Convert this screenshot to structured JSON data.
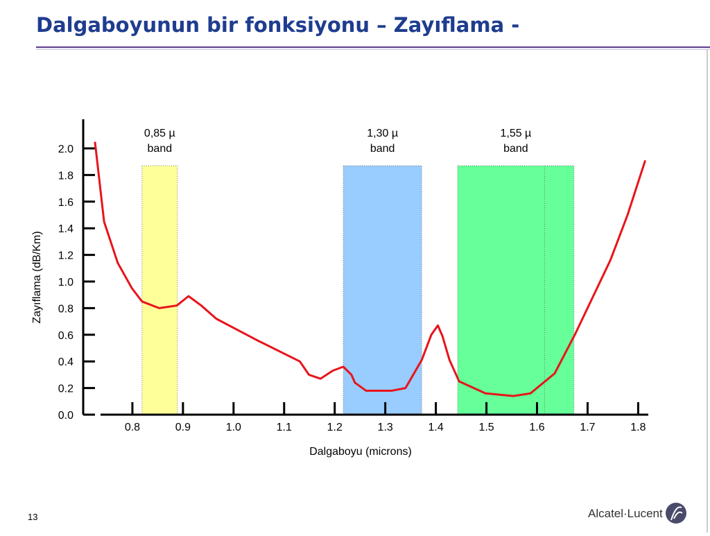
{
  "slide": {
    "title": "Dalgaboyunun bir fonksiyonu – Zayıflama -",
    "page_number": "13",
    "logo": "Alcatel·Lucent"
  },
  "chart_data": {
    "type": "line",
    "x_label": "Dalgaboyu (microns)",
    "y_label": "Zayıflama (dB/Km)",
    "xlim": [
      0.7,
      1.82
    ],
    "ylim": [
      0,
      2.2
    ],
    "xticks": [
      0.8,
      0.9,
      {
        "value": 1,
        "label": "1.0"
      },
      1.1,
      1.2,
      1.3,
      1.4,
      1.5,
      1.6,
      1.7,
      1.8
    ],
    "yticks": [
      {
        "value": 0,
        "label": "0.0"
      },
      0.2,
      0.4,
      0.6,
      0.8,
      {
        "value": 1,
        "label": "1.0"
      },
      1.2,
      1.4,
      1.6,
      1.8,
      {
        "value": 2,
        "label": "2.0"
      }
    ],
    "bands": [
      {
        "label": [
          "0,85 µ",
          "band"
        ],
        "xlim": [
          0.819,
          0.889
        ],
        "top": 1.87,
        "color": "#ffff99"
      },
      {
        "label": [
          "1,30 µ",
          "band"
        ],
        "xlim": [
          1.217,
          1.372
        ],
        "top": 1.87,
        "color": "#99ccff"
      },
      {
        "label": [
          "1,55 µ",
          "band"
        ],
        "xlim": [
          1.443,
          1.673
        ],
        "top": 1.87,
        "color": "#66ff99",
        "divider": 1.615
      }
    ],
    "series": [
      {
        "color": "#e8141b",
        "x": [
          0.726,
          0.744,
          0.771,
          0.799,
          0.819,
          0.853,
          0.888,
          0.911,
          0.936,
          0.966,
          1.046,
          1.131,
          1.149,
          1.172,
          1.196,
          1.217,
          1.233,
          1.24,
          1.262,
          1.313,
          1.34,
          1.372,
          1.391,
          1.404,
          1.413,
          1.427,
          1.446,
          1.498,
          1.553,
          1.587,
          1.635,
          1.676,
          1.745,
          1.779,
          1.814
        ],
        "values": [
          2.05,
          1.45,
          1.14,
          0.95,
          0.85,
          0.8,
          0.82,
          0.89,
          0.82,
          0.72,
          0.56,
          0.4,
          0.3,
          0.27,
          0.33,
          0.36,
          0.3,
          0.24,
          0.18,
          0.18,
          0.2,
          0.41,
          0.6,
          0.67,
          0.59,
          0.41,
          0.25,
          0.16,
          0.14,
          0.16,
          0.31,
          0.61,
          1.16,
          1.5,
          1.91
        ]
      }
    ]
  }
}
